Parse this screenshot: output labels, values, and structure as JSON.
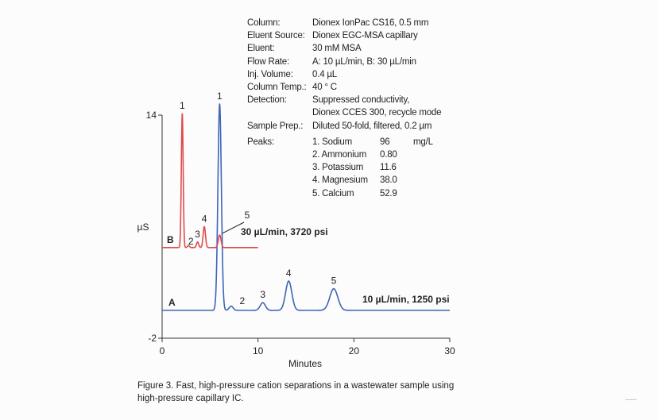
{
  "conditions": [
    {
      "label": "Column:",
      "value": "Dionex IonPac CS16, 0.5 mm"
    },
    {
      "label": "Eluent Source:",
      "value": "Dionex EGC-MSA capillary"
    },
    {
      "label": "Eluent:",
      "value": "30 mM MSA"
    },
    {
      "label": "Flow Rate:",
      "value": "A: 10 µL/min, B: 30 µL/min"
    },
    {
      "label": "Inj. Volume:",
      "value": "0.4 µL"
    },
    {
      "label": "Column Temp.:",
      "value": "40 ° C"
    },
    {
      "label": "Detection:",
      "value": "Suppressed conductivity,"
    },
    {
      "label": "",
      "value": "Dionex CCES 300, recycle mode"
    },
    {
      "label": "Sample Prep.:",
      "value": "Diluted 50-fold, filtered, 0.2 µm"
    }
  ],
  "peaks": {
    "label": "Peaks:",
    "unit": "mg/L",
    "items": [
      {
        "name": "1. Sodium",
        "value": "96"
      },
      {
        "name": "2. Ammonium",
        "value": "0.80"
      },
      {
        "name": "3. Potassium",
        "value": "11.6"
      },
      {
        "name": "4. Magnesium",
        "value": "38.0"
      },
      {
        "name": "5. Calcium",
        "value": "52.9"
      }
    ]
  },
  "caption": {
    "line1": "Figure 3. Fast, high-pressure cation separations in a wastewater sample using",
    "line2": "high-pressure capillary IC."
  },
  "chart_data": {
    "type": "line",
    "xlabel": "Minutes",
    "ylabel": "µS",
    "xlim": [
      0,
      30
    ],
    "ylim": [
      -2,
      14
    ],
    "x_ticks": [
      0,
      10,
      20,
      30
    ],
    "y_ticks": [
      -2,
      14
    ],
    "grid": false,
    "series": [
      {
        "name": "A",
        "color": "#3f64b8",
        "annotation": "10 µL/min, 1250 psi",
        "baseline": 0,
        "peaks": [
          {
            "label": "1",
            "rt": 6.0,
            "height": 14.8
          },
          {
            "label": "2",
            "rt": 7.2,
            "height": 0.3
          },
          {
            "label": "3",
            "rt": 10.5,
            "height": 0.55
          },
          {
            "label": "4",
            "rt": 13.2,
            "height": 2.1
          },
          {
            "label": "5",
            "rt": 17.9,
            "height": 1.55
          }
        ],
        "x_end": 30
      },
      {
        "name": "B",
        "color": "#e04a4a",
        "annotation": "30 µL/min, 3720 psi",
        "baseline": 4.5,
        "peaks": [
          {
            "label": "1",
            "rt": 2.1,
            "height": 9.6
          },
          {
            "label": "2",
            "rt": 2.75,
            "height": 0.15
          },
          {
            "label": "3",
            "rt": 3.7,
            "height": 0.4
          },
          {
            "label": "4",
            "rt": 4.4,
            "height": 1.5
          },
          {
            "label": "5",
            "rt": 6.0,
            "height": 0.9
          }
        ],
        "x_end": 10
      }
    ]
  }
}
